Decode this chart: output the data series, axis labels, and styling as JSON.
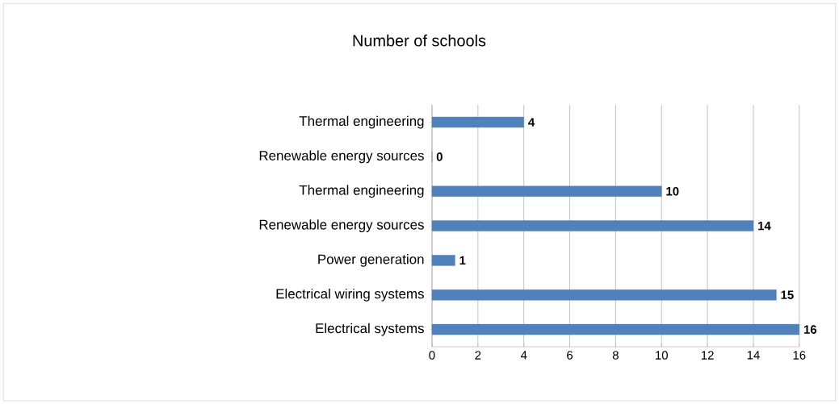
{
  "chart_data": {
    "type": "bar",
    "orientation": "horizontal",
    "title": "Number of schools",
    "categories": [
      "Thermal engineering",
      "Renewable energy sources",
      "Thermal engineering",
      "Renewable energy sources",
      "Power generation",
      "Electrical wiring systems",
      "Electrical systems"
    ],
    "values": [
      4,
      0,
      10,
      14,
      1,
      15,
      16
    ],
    "color": "#4f81bd",
    "xlim": [
      0,
      16
    ],
    "xticks": [
      0,
      2,
      4,
      6,
      8,
      10,
      12,
      14,
      16
    ],
    "grid": "x",
    "data_labels": true
  }
}
